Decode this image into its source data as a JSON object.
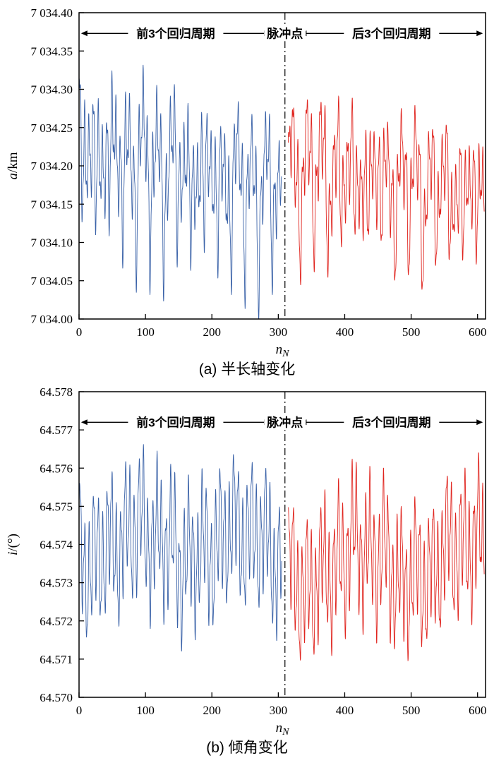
{
  "figures": [
    {
      "caption": "(a) 半长轴变化"
    },
    {
      "caption": "(b) 倾角变化"
    }
  ],
  "colors": {
    "before": "#3A62A8",
    "after": "#E0251F",
    "axis": "#000000"
  },
  "chart_data": [
    {
      "type": "line",
      "title": "",
      "grid": false,
      "legend": "none",
      "ylabel_segments": [
        {
          "text": "a",
          "italic": true
        },
        {
          "text": "/km",
          "italic": false
        }
      ],
      "xlabel_segments": [
        {
          "text": "n",
          "italic": true
        },
        {
          "text": "N",
          "italic": true,
          "sub": true
        }
      ],
      "xlim": [
        0,
        612
      ],
      "ylim": [
        7034.0,
        7034.4
      ],
      "x_tick_values": [
        0,
        100,
        200,
        300,
        400,
        500,
        600
      ],
      "x_tick_labels": [
        "0",
        "100",
        "200",
        "300",
        "400",
        "500",
        "600"
      ],
      "y_tick_values": [
        7034.0,
        7034.05,
        7034.1,
        7034.15,
        7034.2,
        7034.25,
        7034.3,
        7034.35,
        7034.4
      ],
      "y_tick_labels": [
        "7 034.00",
        "7 034.05",
        "7 034.10",
        "7 034.15",
        "7 034.20",
        "7 034.25",
        "7 034.30",
        "7 034.35",
        "7 034.40"
      ],
      "impulse_line_x": 310,
      "annotations": {
        "row_y": 7034.373,
        "left_span": {
          "text": "前3个回归周期",
          "x1": 3,
          "x2": 288
        },
        "impulse": {
          "text": "脉冲点",
          "x": 310
        },
        "right_span": {
          "text": "后3个回归周期",
          "x1": 333,
          "x2": 608
        }
      },
      "series": [
        {
          "name": "前3个回归周期",
          "color": "#3A62A8",
          "x_start": 0,
          "x_end": 305,
          "step": 0.25,
          "base": [
            7034.235,
            7034.185
          ],
          "components": [
            {
              "period": 6.8,
              "amp": [
                0.05,
                0.042
              ],
              "phase": 0.3
            },
            {
              "period": 23.5,
              "amp": [
                0.038,
                0.03
              ],
              "phase": 1.2
            },
            {
              "period": 2.93,
              "amp": [
                0.022,
                0.018
              ],
              "phase": 2.1
            },
            {
              "period": 47.0,
              "amp": [
                0.012,
                0.012
              ],
              "phase": 0.8
            },
            {
              "period": 20.4,
              "amp": [
                -0.085,
                -0.105
              ],
              "phase": 0.0,
              "power": 6,
              "rectified": true
            }
          ]
        },
        {
          "name": "后3个回归周期",
          "color": "#E0251F",
          "x_start": 315,
          "x_end": 610,
          "step": 0.25,
          "base": [
            7034.215,
            7034.18
          ],
          "components": [
            {
              "period": 6.8,
              "amp": [
                0.048,
                0.042
              ],
              "phase": 0.9
            },
            {
              "period": 23.5,
              "amp": [
                0.034,
                0.028
              ],
              "phase": 0.4
            },
            {
              "period": 2.93,
              "amp": [
                0.02,
                0.016
              ],
              "phase": 1.7
            },
            {
              "period": 47.0,
              "amp": [
                0.012,
                0.012
              ],
              "phase": 2.3
            },
            {
              "period": 20.4,
              "amp": [
                -0.085,
                -0.1
              ],
              "phase": 2.0,
              "power": 6,
              "rectified": true
            }
          ]
        }
      ]
    },
    {
      "type": "line",
      "title": "",
      "grid": false,
      "legend": "none",
      "ylabel_segments": [
        {
          "text": "i",
          "italic": true
        },
        {
          "text": "/(°)",
          "italic": false
        }
      ],
      "xlabel_segments": [
        {
          "text": "n",
          "italic": true
        },
        {
          "text": "N",
          "italic": true,
          "sub": true
        }
      ],
      "xlim": [
        0,
        612
      ],
      "ylim": [
        64.57,
        64.578
      ],
      "x_tick_values": [
        0,
        100,
        200,
        300,
        400,
        500,
        600
      ],
      "x_tick_labels": [
        "0",
        "100",
        "200",
        "300",
        "400",
        "500",
        "600"
      ],
      "y_tick_values": [
        64.57,
        64.571,
        64.572,
        64.573,
        64.574,
        64.575,
        64.576,
        64.577,
        64.578
      ],
      "y_tick_labels": [
        "64.570",
        "64.571",
        "64.572",
        "64.573",
        "64.574",
        "64.575",
        "64.576",
        "64.577",
        "64.578"
      ],
      "impulse_line_x": 310,
      "annotations": {
        "row_y": 64.5772,
        "left_span": {
          "text": "前3个回归周期",
          "x1": 3,
          "x2": 288
        },
        "impulse": {
          "text": "脉冲点",
          "x": 310
        },
        "right_span": {
          "text": "后3个回归周期",
          "x1": 333,
          "x2": 608
        }
      },
      "series": [
        {
          "name": "前3个回归周期",
          "color": "#3A62A8",
          "x_start": 0,
          "x_end": 305,
          "step": 0.25,
          "base": [
            64.574,
            64.574
          ],
          "components": [
            {
              "period": 6.8,
              "amp": [
                0.0013,
                0.0013
              ],
              "phase": 0.0
            },
            {
              "period": 23.5,
              "amp": [
                0.0007,
                0.0007
              ],
              "phase": 1.5
            },
            {
              "period": 2.93,
              "amp": [
                0.0004,
                0.0004
              ],
              "phase": 0.7
            },
            {
              "period": 47.0,
              "amp": [
                0.0002,
                0.0002
              ],
              "phase": 2.6
            },
            {
              "period": 150.0,
              "amp": [
                0.0004,
                0.0004
              ],
              "phase": 4.0
            }
          ]
        },
        {
          "name": "后3个回归周期",
          "color": "#E0251F",
          "x_start": 315,
          "x_end": 610,
          "step": 0.25,
          "base": [
            64.5734,
            64.5736
          ],
          "components": [
            {
              "period": 6.8,
              "amp": [
                0.0013,
                0.0013
              ],
              "phase": 1.0
            },
            {
              "period": 23.5,
              "amp": [
                0.0007,
                0.0007
              ],
              "phase": 0.3
            },
            {
              "period": 2.93,
              "amp": [
                0.0004,
                0.0004
              ],
              "phase": 2.2
            },
            {
              "period": 47.0,
              "amp": [
                0.0002,
                0.0002
              ],
              "phase": 1.1
            },
            {
              "period": 160.0,
              "amp": [
                -0.0005,
                -0.0005
              ],
              "phase": 0.5
            }
          ]
        }
      ]
    }
  ]
}
